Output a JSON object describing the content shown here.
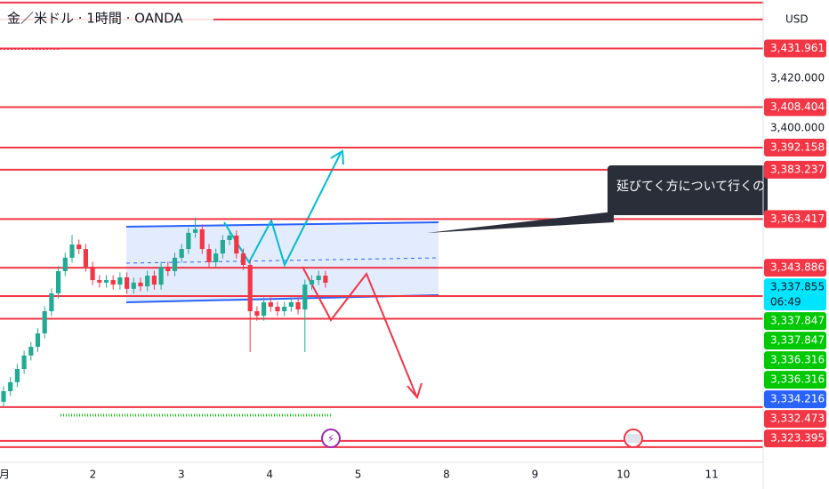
{
  "chart_data": {
    "type": "candlestick",
    "title": "金／米ドル · 1時間 · OANDA",
    "currency": "USD",
    "annotation": "延びてく方について行くの",
    "up_color": "#22ab94",
    "down_color": "#f23645",
    "level_color": "#f23645",
    "ylim": [
      3265.7,
      3451.43
    ],
    "yticks": [
      {
        "value": 3420,
        "label": "3,420.000"
      },
      {
        "value": 3400,
        "label": "3,400.000"
      }
    ],
    "grid": false,
    "xaxis_labels": [
      "月",
      "2",
      "3",
      "4",
      "5",
      "8",
      "9",
      "10",
      "11"
    ],
    "open": [
      3290,
      3294.3,
      3297.9,
      3303.2,
      3308.6,
      3312.1,
      3317.5,
      3326.4,
      3333.6,
      3342.5,
      3347.9,
      3353.2,
      3351.4,
      3344.3,
      3338.9,
      3337.9,
      3338.9,
      3337.1,
      3340,
      3335.4,
      3337.9,
      3336.4,
      3340.7,
      3337.1,
      3344.3,
      3342.5,
      3347.9,
      3351.4,
      3357.9,
      3359.3,
      3351.4,
      3346.1,
      3349.6,
      3355,
      3356.8,
      3349.6,
      3345,
      3326.4,
      3324.6,
      3330,
      3328.2,
      3326.4,
      3328.2,
      3330,
      3327.1,
      3337.1,
      3338.9,
      3340.7
    ],
    "high": [
      3296.3,
      3299.9,
      3305.2,
      3310.6,
      3314.1,
      3319.5,
      3328.4,
      3335.6,
      3344.5,
      3349.9,
      3357,
      3355.2,
      3353.4,
      3346.3,
      3340.9,
      3340.9,
      3340.9,
      3342,
      3342,
      3339.9,
      3339.9,
      3342.7,
      3342.7,
      3346.3,
      3346.3,
      3349.9,
      3353.4,
      3359.9,
      3364,
      3361.3,
      3353.4,
      3351.6,
      3357,
      3358.8,
      3358.8,
      3351.6,
      3347,
      3328.4,
      3332,
      3332,
      3330.2,
      3330.2,
      3332,
      3332,
      3339.1,
      3340.9,
      3342.7,
      3342.7
    ],
    "low": [
      3288,
      3292.3,
      3295.9,
      3301.2,
      3306.6,
      3310.1,
      3315.5,
      3324.4,
      3331.6,
      3340.5,
      3345.9,
      3349.4,
      3342.3,
      3336.9,
      3335.9,
      3335.9,
      3335.1,
      3335.1,
      3333.4,
      3333.4,
      3334.4,
      3334.4,
      3335.1,
      3335.1,
      3340.5,
      3340.5,
      3345.9,
      3349.4,
      3355.9,
      3349.4,
      3344.1,
      3344.1,
      3347.6,
      3353,
      3347.6,
      3343,
      3310,
      3322.6,
      3322.6,
      3326.2,
      3324.4,
      3324.4,
      3326.2,
      3325.1,
      3310,
      3335.1,
      3336.9,
      3335.855
    ],
    "close": [
      3294.3,
      3297.9,
      3303.2,
      3308.6,
      3312.1,
      3317.5,
      3326.4,
      3333.6,
      3342.5,
      3347.9,
      3353.2,
      3351.4,
      3344.3,
      3338.9,
      3337.9,
      3338.9,
      3337.1,
      3340,
      3335.4,
      3337.9,
      3336.4,
      3340.7,
      3337.1,
      3344.3,
      3342.5,
      3347.9,
      3351.4,
      3357.9,
      3359.3,
      3351.4,
      3346.1,
      3349.6,
      3355,
      3356.8,
      3349.6,
      3345,
      3326.4,
      3324.6,
      3330,
      3328.2,
      3326.4,
      3328.2,
      3330,
      3327.1,
      3337.1,
      3338.9,
      3340.7,
      3337.855
    ],
    "hlines": [
      3450.4,
      3443.6,
      3431.961,
      3408.404,
      3392.158,
      3383.237,
      3363.417,
      3343.886,
      3332.473,
      3323.395,
      3287.9,
      3274.3,
      3271.8
    ],
    "price_labels": [
      {
        "value": 3431.961,
        "label": "3,431.961",
        "color": "#f23645"
      },
      {
        "value": 3408.404,
        "label": "3,408.404",
        "color": "#f23645"
      },
      {
        "value": 3392.158,
        "label": "3,392.158",
        "color": "#f23645"
      },
      {
        "value": 3383.237,
        "label": "3,383.237",
        "color": "#f23645"
      },
      {
        "value": 3363.417,
        "label": "3,363.417",
        "color": "#f23645"
      },
      {
        "value": 3343.886,
        "label": "3,343.886",
        "color": "#f23645"
      },
      {
        "value": 3337.855,
        "label": "3,337.855",
        "color": "#00e5ff",
        "countdown": "06:49"
      },
      {
        "value": 3337.847,
        "label": "3,337.847",
        "color": "#00c805"
      },
      {
        "value": 3337.847,
        "label": "3,337.847",
        "color": "#00c805"
      },
      {
        "value": 3336.316,
        "label": "3,336.316",
        "color": "#00c805"
      },
      {
        "value": 3336.316,
        "label": "3,336.316",
        "color": "#00c805"
      },
      {
        "value": 3334.216,
        "label": "3,334.216",
        "color": "#2962ff"
      },
      {
        "value": 3332.473,
        "label": "3,332.473",
        "color": "#f23645"
      },
      {
        "value": 3323.395,
        "label": "3,323.395",
        "color": "#f23645"
      }
    ]
  }
}
